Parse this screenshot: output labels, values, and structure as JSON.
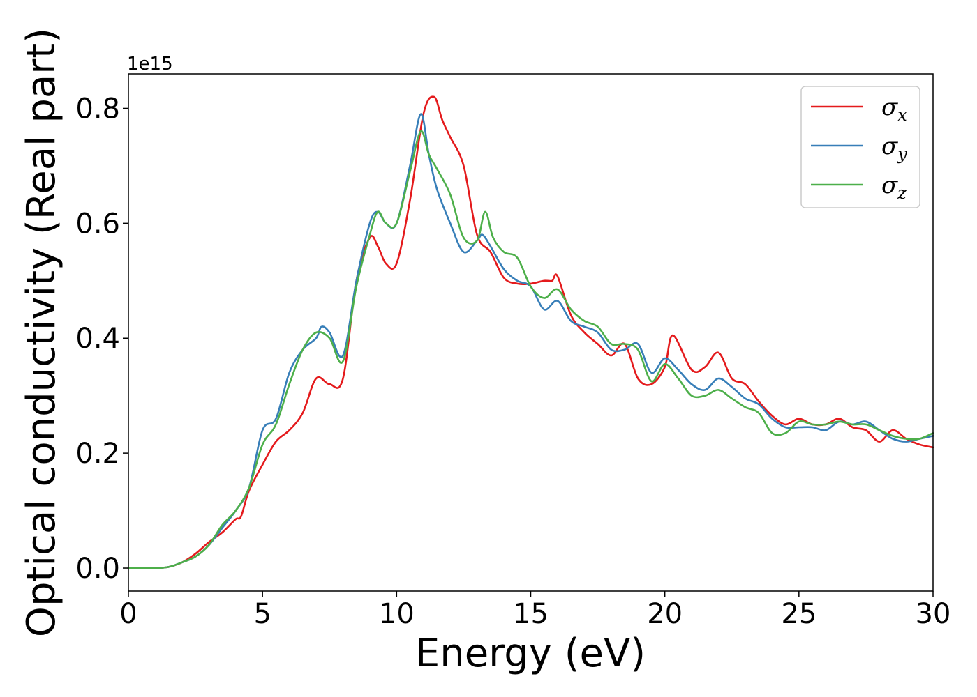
{
  "chart_data": {
    "type": "line",
    "xlabel": "Energy (eV)",
    "ylabel": "Optical conductivity (Real part)",
    "offset_label": "1e15",
    "xlim": [
      0,
      30
    ],
    "ylim": [
      -0.04,
      0.86
    ],
    "x_ticks": [
      0,
      5,
      10,
      15,
      20,
      25,
      30
    ],
    "x_tick_labels": [
      "0",
      "5",
      "10",
      "15",
      "20",
      "25",
      "30"
    ],
    "y_ticks": [
      0.0,
      0.2,
      0.4,
      0.6,
      0.8
    ],
    "y_tick_labels": [
      "0.0",
      "0.2",
      "0.4",
      "0.6",
      "0.8"
    ],
    "grid": false,
    "legend_position": "top-right",
    "series": [
      {
        "name": "σx",
        "legend_base": "σ",
        "legend_sub": "x",
        "color": "#e41a1c",
        "x": [
          0,
          1,
          1.5,
          2,
          2.5,
          3,
          3.5,
          4,
          4.2,
          4.5,
          5,
          5.5,
          6,
          6.5,
          7,
          7.5,
          8,
          8.5,
          9,
          9.3,
          9.6,
          10,
          10.5,
          11,
          11.4,
          11.7,
          12,
          12.5,
          13,
          13.5,
          14,
          14.5,
          15,
          15.5,
          15.8,
          16,
          16.5,
          17,
          17.5,
          18,
          18.5,
          19,
          19.5,
          20,
          20.3,
          21,
          21.5,
          22,
          22.5,
          23,
          23.5,
          24,
          24.5,
          25,
          25.5,
          26,
          26.5,
          27,
          27.5,
          28,
          28.5,
          29,
          29.5,
          30
        ],
        "y": [
          0,
          0,
          0.002,
          0.01,
          0.025,
          0.045,
          0.062,
          0.085,
          0.09,
          0.135,
          0.18,
          0.22,
          0.24,
          0.27,
          0.33,
          0.32,
          0.33,
          0.5,
          0.575,
          0.56,
          0.53,
          0.53,
          0.64,
          0.79,
          0.82,
          0.78,
          0.75,
          0.7,
          0.58,
          0.55,
          0.505,
          0.495,
          0.495,
          0.5,
          0.5,
          0.508,
          0.44,
          0.41,
          0.39,
          0.37,
          0.39,
          0.33,
          0.32,
          0.35,
          0.405,
          0.345,
          0.35,
          0.375,
          0.33,
          0.32,
          0.29,
          0.265,
          0.25,
          0.26,
          0.25,
          0.25,
          0.26,
          0.245,
          0.24,
          0.22,
          0.24,
          0.225,
          0.215,
          0.21
        ]
      },
      {
        "name": "σy",
        "legend_base": "σ",
        "legend_sub": "y",
        "color": "#377eb8",
        "x": [
          0,
          1,
          1.5,
          2,
          2.5,
          3,
          3.5,
          4,
          4.5,
          5,
          5.5,
          6,
          6.5,
          7,
          7.2,
          7.5,
          8,
          8.5,
          9,
          9.3,
          9.6,
          10,
          10.5,
          10.9,
          11.2,
          11.5,
          12,
          12.5,
          13,
          13.2,
          13.5,
          14,
          14.5,
          15,
          15.5,
          16,
          16.5,
          17,
          17.5,
          18,
          18.5,
          19,
          19.5,
          20,
          20.5,
          21,
          21.5,
          22,
          22.5,
          23,
          23.5,
          24,
          24.5,
          25,
          25.5,
          26,
          26.5,
          27,
          27.5,
          28,
          28.5,
          29,
          29.5,
          30
        ],
        "y": [
          0,
          0,
          0.002,
          0.01,
          0.02,
          0.04,
          0.07,
          0.1,
          0.14,
          0.24,
          0.26,
          0.34,
          0.38,
          0.4,
          0.42,
          0.41,
          0.37,
          0.5,
          0.6,
          0.62,
          0.6,
          0.6,
          0.7,
          0.79,
          0.72,
          0.66,
          0.6,
          0.55,
          0.57,
          0.58,
          0.56,
          0.52,
          0.5,
          0.49,
          0.45,
          0.465,
          0.43,
          0.42,
          0.41,
          0.38,
          0.38,
          0.39,
          0.34,
          0.365,
          0.345,
          0.32,
          0.31,
          0.33,
          0.315,
          0.295,
          0.285,
          0.26,
          0.245,
          0.245,
          0.245,
          0.24,
          0.255,
          0.25,
          0.255,
          0.24,
          0.225,
          0.22,
          0.225,
          0.23
        ]
      },
      {
        "name": "σz",
        "legend_base": "σ",
        "legend_sub": "z",
        "color": "#4daf4a",
        "x": [
          0,
          1,
          1.5,
          2,
          2.5,
          3,
          3.5,
          4,
          4.5,
          5,
          5.5,
          6,
          6.5,
          7,
          7.5,
          8,
          8.5,
          9,
          9.3,
          9.6,
          10,
          10.5,
          10.9,
          11.2,
          11.5,
          12,
          12.5,
          13,
          13.3,
          13.6,
          14,
          14.5,
          15,
          15.5,
          16,
          16.5,
          17,
          17.5,
          18,
          18.5,
          19,
          19.5,
          20,
          20.5,
          21,
          21.5,
          22,
          22.5,
          23,
          23.5,
          24,
          24.5,
          25,
          25.5,
          26,
          26.5,
          27,
          27.5,
          28,
          28.5,
          29,
          29.5,
          30
        ],
        "y": [
          0,
          0,
          0.002,
          0.01,
          0.02,
          0.04,
          0.075,
          0.1,
          0.14,
          0.215,
          0.25,
          0.32,
          0.38,
          0.41,
          0.4,
          0.36,
          0.49,
          0.58,
          0.62,
          0.6,
          0.6,
          0.69,
          0.76,
          0.72,
          0.695,
          0.65,
          0.575,
          0.57,
          0.62,
          0.575,
          0.55,
          0.54,
          0.49,
          0.47,
          0.485,
          0.45,
          0.43,
          0.42,
          0.39,
          0.39,
          0.38,
          0.325,
          0.355,
          0.33,
          0.3,
          0.3,
          0.31,
          0.295,
          0.28,
          0.27,
          0.235,
          0.235,
          0.255,
          0.25,
          0.25,
          0.255,
          0.25,
          0.25,
          0.24,
          0.23,
          0.225,
          0.225,
          0.235
        ]
      }
    ]
  }
}
